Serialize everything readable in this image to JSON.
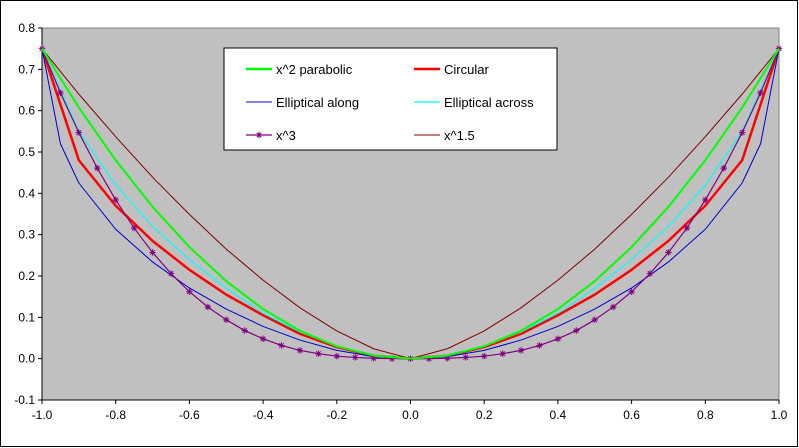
{
  "chart_data": {
    "type": "line",
    "title": "",
    "xlabel": "",
    "ylabel": "",
    "xlim": [
      -1.0,
      1.0
    ],
    "ylim": [
      -0.1,
      0.8
    ],
    "grid": false,
    "legend_position": "top-center",
    "plot_background": "#c0c0c0",
    "x_ticks": [
      "-1.0",
      "-0.8",
      "-0.6",
      "-0.4",
      "-0.2",
      "0.0",
      "0.2",
      "0.4",
      "0.6",
      "0.8",
      "1.0"
    ],
    "y_ticks": [
      "-0.1",
      "0.0",
      "0.1",
      "0.2",
      "0.3",
      "0.4",
      "0.5",
      "0.6",
      "0.7",
      "0.8"
    ],
    "series": [
      {
        "name": "x^2 parabolic",
        "color": "#00ff00",
        "width": 2,
        "marker": "none",
        "x": [
          -1.0,
          -0.9,
          -0.8,
          -0.7,
          -0.6,
          -0.5,
          -0.4,
          -0.3,
          -0.2,
          -0.1,
          0.0,
          0.1,
          0.2,
          0.3,
          0.4,
          0.5,
          0.6,
          0.7,
          0.8,
          0.9,
          1.0
        ],
        "y": [
          0.75,
          0.6075,
          0.48,
          0.3675,
          0.27,
          0.1875,
          0.12,
          0.0675,
          0.03,
          0.0075,
          0.0,
          0.0075,
          0.03,
          0.0675,
          0.12,
          0.1875,
          0.27,
          0.3675,
          0.48,
          0.6075,
          0.75
        ]
      },
      {
        "name": "Circular",
        "color": "#ff0000",
        "width": 2.5,
        "marker": "none",
        "x": [
          -1.0,
          -0.9,
          -0.8,
          -0.7,
          -0.6,
          -0.5,
          -0.4,
          -0.3,
          -0.2,
          -0.1,
          0.0,
          0.1,
          0.2,
          0.3,
          0.4,
          0.5,
          0.6,
          0.7,
          0.8,
          0.9,
          1.0
        ],
        "y": [
          0.75,
          0.48,
          0.37,
          0.285,
          0.215,
          0.155,
          0.105,
          0.06,
          0.028,
          0.007,
          0.0,
          0.007,
          0.028,
          0.06,
          0.105,
          0.155,
          0.215,
          0.285,
          0.37,
          0.48,
          0.75
        ]
      },
      {
        "name": "Elliptical along",
        "color": "#0000cc",
        "width": 1,
        "marker": "none",
        "x": [
          -1.0,
          -0.95,
          -0.9,
          -0.8,
          -0.7,
          -0.6,
          -0.5,
          -0.4,
          -0.3,
          -0.2,
          -0.1,
          0.0,
          0.1,
          0.2,
          0.3,
          0.4,
          0.5,
          0.6,
          0.7,
          0.8,
          0.9,
          0.95,
          1.0
        ],
        "y": [
          0.75,
          0.52,
          0.425,
          0.313,
          0.234,
          0.171,
          0.12,
          0.078,
          0.045,
          0.02,
          0.005,
          0.0,
          0.005,
          0.02,
          0.045,
          0.078,
          0.12,
          0.171,
          0.234,
          0.313,
          0.425,
          0.52,
          0.75
        ]
      },
      {
        "name": "Elliptical across",
        "color": "#00ffff",
        "width": 1.2,
        "marker": "none",
        "x": [
          -1.0,
          -0.9,
          -0.8,
          -0.7,
          -0.6,
          -0.5,
          -0.4,
          -0.3,
          -0.2,
          -0.1,
          0.0,
          0.1,
          0.2,
          0.3,
          0.4,
          0.5,
          0.6,
          0.7,
          0.8,
          0.9,
          1.0
        ],
        "y": [
          0.75,
          0.55,
          0.42,
          0.32,
          0.24,
          0.17,
          0.11,
          0.065,
          0.03,
          0.008,
          0.0,
          0.008,
          0.03,
          0.065,
          0.11,
          0.17,
          0.24,
          0.32,
          0.42,
          0.55,
          0.75
        ]
      },
      {
        "name": "x^3",
        "color": "#800080",
        "width": 1.2,
        "marker": "star",
        "x": [
          -1.0,
          -0.95,
          -0.9,
          -0.85,
          -0.8,
          -0.75,
          -0.7,
          -0.65,
          -0.6,
          -0.55,
          -0.5,
          -0.45,
          -0.4,
          -0.35,
          -0.3,
          -0.25,
          -0.2,
          -0.15,
          -0.1,
          -0.05,
          0.0,
          0.05,
          0.1,
          0.15,
          0.2,
          0.25,
          0.3,
          0.35,
          0.4,
          0.45,
          0.5,
          0.55,
          0.6,
          0.65,
          0.7,
          0.75,
          0.8,
          0.85,
          0.9,
          0.95,
          1.0
        ],
        "y": [
          0.75,
          0.643,
          0.547,
          0.461,
          0.384,
          0.316,
          0.257,
          0.206,
          0.162,
          0.125,
          0.094,
          0.068,
          0.048,
          0.032,
          0.02,
          0.012,
          0.006,
          0.003,
          0.001,
          0.0,
          0.0,
          0.0,
          0.001,
          0.003,
          0.006,
          0.012,
          0.02,
          0.032,
          0.048,
          0.068,
          0.094,
          0.125,
          0.162,
          0.206,
          0.257,
          0.316,
          0.384,
          0.461,
          0.547,
          0.643,
          0.75
        ]
      },
      {
        "name": "x^1.5",
        "color": "#800000",
        "width": 1,
        "marker": "none",
        "x": [
          -1.0,
          -0.9,
          -0.8,
          -0.7,
          -0.6,
          -0.5,
          -0.4,
          -0.3,
          -0.2,
          -0.1,
          0.0,
          0.1,
          0.2,
          0.3,
          0.4,
          0.5,
          0.6,
          0.7,
          0.8,
          0.9,
          1.0
        ],
        "y": [
          0.75,
          0.64,
          0.537,
          0.439,
          0.349,
          0.265,
          0.19,
          0.123,
          0.067,
          0.024,
          0.0,
          0.024,
          0.067,
          0.123,
          0.19,
          0.265,
          0.349,
          0.439,
          0.537,
          0.64,
          0.75
        ]
      }
    ],
    "legend_order": [
      0,
      1,
      2,
      3,
      4,
      5
    ]
  }
}
